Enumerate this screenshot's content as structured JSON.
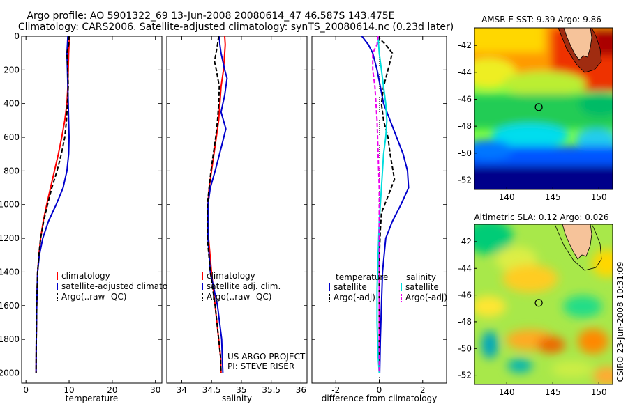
{
  "header": {
    "line1": "Argo profile: AO 5901322_69 13-Jun-2008 20080614_47 46.587S 143.475E",
    "line2": "Climatology: CARS2006. Satellite-adjusted climatology: synTS_20080614.nc (0.23d later)"
  },
  "chart_data": [
    {
      "type": "line",
      "id": "temperature-profile",
      "xlabel": "temperature",
      "ylabel": "",
      "xlim": [
        -1,
        31.5
      ],
      "ylim": [
        2060,
        0
      ],
      "xticks": [
        0,
        10,
        20,
        30
      ],
      "yticks": [
        0,
        200,
        400,
        600,
        800,
        1000,
        1200,
        1400,
        1600,
        1800,
        2000
      ],
      "legend_entries": [
        "climatology",
        "satellite-adjusted climatology",
        "Argo(..raw -QC)"
      ],
      "series": [
        {
          "name": "climatology",
          "color": "#ff0000",
          "style": "solid",
          "x": [
            10.1,
            10.0,
            9.9,
            9.8,
            9.7,
            9.5,
            9.0,
            8.3,
            7.5,
            6.6,
            5.7,
            4.8,
            4.0,
            3.4,
            3.0,
            2.7,
            2.5,
            2.4,
            2.35
          ],
          "y": [
            0,
            50,
            100,
            200,
            300,
            400,
            500,
            600,
            700,
            800,
            900,
            1000,
            1100,
            1200,
            1300,
            1400,
            1600,
            1800,
            2000
          ]
        },
        {
          "name": "satellite-adjusted climatology",
          "color": "#0000cc",
          "style": "solid",
          "x": [
            9.7,
            9.6,
            9.5,
            9.6,
            9.7,
            9.8,
            9.9,
            10.0,
            9.9,
            9.5,
            8.6,
            7.0,
            5.2,
            3.9,
            3.1,
            2.7,
            2.5,
            2.4,
            2.35
          ],
          "y": [
            0,
            50,
            100,
            200,
            300,
            400,
            500,
            600,
            700,
            800,
            900,
            1000,
            1100,
            1200,
            1300,
            1400,
            1600,
            1800,
            2000
          ]
        },
        {
          "name": "Argo(..raw -QC)",
          "color": "#000000",
          "style": "dashed",
          "x": [
            10.0,
            9.9,
            9.5,
            9.7,
            9.8,
            9.6,
            9.4,
            9.0,
            8.2,
            7.2,
            6.0,
            5.0,
            4.1,
            3.4,
            3.0,
            2.7,
            2.5,
            2.4,
            2.35
          ],
          "y": [
            0,
            50,
            100,
            200,
            300,
            400,
            500,
            600,
            700,
            800,
            900,
            1000,
            1100,
            1200,
            1300,
            1400,
            1600,
            1800,
            2000
          ]
        }
      ]
    },
    {
      "type": "line",
      "id": "salinity-profile",
      "xlabel": "salinity",
      "xlim": [
        33.75,
        36.1
      ],
      "ylim": [
        2060,
        0
      ],
      "xticks": [
        34,
        34.5,
        35,
        35.5,
        36
      ],
      "legend_entries": [
        "climatology",
        "satellite adj. clim.",
        "Argo(..raw -QC)"
      ],
      "annotation": [
        "US ARGO PROJECT",
        "PI: STEVE RISER"
      ],
      "series": [
        {
          "name": "climatology",
          "color": "#ff0000",
          "style": "solid",
          "x": [
            34.72,
            34.73,
            34.72,
            34.7,
            34.66,
            34.64,
            34.62,
            34.58,
            34.54,
            34.5,
            34.46,
            34.44,
            34.45,
            34.5,
            34.56,
            34.62,
            34.65,
            34.66
          ],
          "y": [
            0,
            50,
            100,
            200,
            300,
            400,
            500,
            600,
            700,
            800,
            900,
            1000,
            1200,
            1400,
            1600,
            1800,
            1900,
            2000
          ]
        },
        {
          "name": "satellite adj. clim.",
          "color": "#0000cc",
          "style": "solid",
          "x": [
            34.63,
            34.64,
            34.66,
            34.72,
            34.76,
            34.72,
            34.66,
            34.74,
            34.67,
            34.56,
            34.48,
            34.44,
            34.44,
            34.48,
            34.6,
            34.67,
            34.68,
            34.69
          ],
          "y": [
            0,
            50,
            100,
            200,
            250,
            350,
            450,
            550,
            650,
            800,
            900,
            1000,
            1200,
            1400,
            1600,
            1800,
            1900,
            2000
          ]
        },
        {
          "name": "Argo(..raw -QC)",
          "color": "#000000",
          "style": "dashed",
          "x": [
            34.62,
            34.6,
            34.55,
            34.58,
            34.63,
            34.62,
            34.6,
            34.57,
            34.53,
            34.49,
            34.46,
            34.43,
            34.43,
            34.48,
            34.56,
            34.62,
            34.65,
            34.66
          ],
          "y": [
            0,
            50,
            150,
            200,
            300,
            400,
            500,
            600,
            700,
            800,
            900,
            1000,
            1200,
            1400,
            1600,
            1800,
            1900,
            2000
          ]
        }
      ]
    },
    {
      "type": "line",
      "id": "difference-profile",
      "xlabel": "difference from climatology",
      "xlim": [
        -3.1,
        3.1
      ],
      "ylim": [
        2060,
        0
      ],
      "xticks": [
        -2,
        0,
        2
      ],
      "legend": {
        "temperature_heading": "temperature",
        "salinity_heading": "salinity",
        "temperature_entries": [
          "satellite",
          "Argo(-adj)"
        ],
        "salinity_entries": [
          "satellite",
          "Argo(-adj)"
        ]
      },
      "series": [
        {
          "name": "temperature satellite",
          "color": "#0000cc",
          "style": "solid",
          "x": [
            -0.8,
            -0.5,
            -0.3,
            -0.1,
            0.05,
            0.2,
            0.5,
            0.8,
            1.1,
            1.3,
            1.35,
            1.0,
            0.6,
            0.3,
            0.15,
            0.1,
            0.05,
            0.02
          ],
          "y": [
            0,
            50,
            100,
            200,
            300,
            400,
            500,
            600,
            700,
            800,
            900,
            1000,
            1100,
            1200,
            1400,
            1600,
            1800,
            2000
          ]
        },
        {
          "name": "temperature Argo(-adj)",
          "color": "#000000",
          "style": "dashed",
          "x": [
            -0.1,
            0.3,
            0.6,
            0.4,
            0.2,
            0.1,
            0.2,
            0.4,
            0.5,
            0.7,
            0.4,
            0.1,
            0.05,
            0.02,
            0.0,
            0.0,
            0.0,
            0.0
          ],
          "y": [
            0,
            50,
            100,
            200,
            300,
            400,
            500,
            600,
            700,
            850,
            950,
            1050,
            1150,
            1250,
            1400,
            1600,
            1800,
            2000
          ]
        },
        {
          "name": "salinity satellite",
          "color": "#00dddd",
          "style": "solid",
          "x": [
            -0.05,
            -0.03,
            0.0,
            0.1,
            0.2,
            0.3,
            0.35,
            0.3,
            0.2,
            0.1,
            0.0,
            -0.05,
            -0.1,
            -0.1,
            -0.05,
            0.0
          ],
          "y": [
            0,
            50,
            100,
            200,
            300,
            400,
            500,
            600,
            700,
            900,
            1100,
            1300,
            1500,
            1700,
            1900,
            2000
          ]
        },
        {
          "name": "salinity Argo(-adj)",
          "color": "#ee00ee",
          "style": "dashed",
          "x": [
            -0.05,
            -0.1,
            -0.3,
            -0.3,
            -0.2,
            -0.1,
            -0.05,
            0.0,
            0.0,
            0.0,
            0.0,
            0.0
          ],
          "y": [
            0,
            50,
            100,
            200,
            300,
            500,
            700,
            900,
            1200,
            1500,
            1800,
            2000
          ]
        }
      ]
    },
    {
      "type": "heatmap",
      "id": "sst-map",
      "title": "AMSR-E SST: 9.39 Argo: 9.86",
      "xlim": [
        136.5,
        151.5
      ],
      "ylim": [
        -52.7,
        -40.7
      ],
      "xticks": [
        140,
        145,
        150
      ],
      "yticks": [
        -42,
        -44,
        -46,
        -48,
        -50,
        -52
      ],
      "marker": {
        "lon": 143.475,
        "lat": -46.587
      }
    },
    {
      "type": "heatmap",
      "id": "sla-map",
      "title": "Altimetric SLA: 0.12 Argo: 0.026",
      "xlim": [
        136.5,
        151.5
      ],
      "ylim": [
        -52.7,
        -40.7
      ],
      "xticks": [
        140,
        145,
        150
      ],
      "yticks": [
        -42,
        -44,
        -46,
        -48,
        -50,
        -52
      ],
      "marker": {
        "lon": 143.475,
        "lat": -46.587
      }
    }
  ],
  "footer": {
    "stamp": "CSIRO 23-Jun-2008 10:31:09"
  }
}
